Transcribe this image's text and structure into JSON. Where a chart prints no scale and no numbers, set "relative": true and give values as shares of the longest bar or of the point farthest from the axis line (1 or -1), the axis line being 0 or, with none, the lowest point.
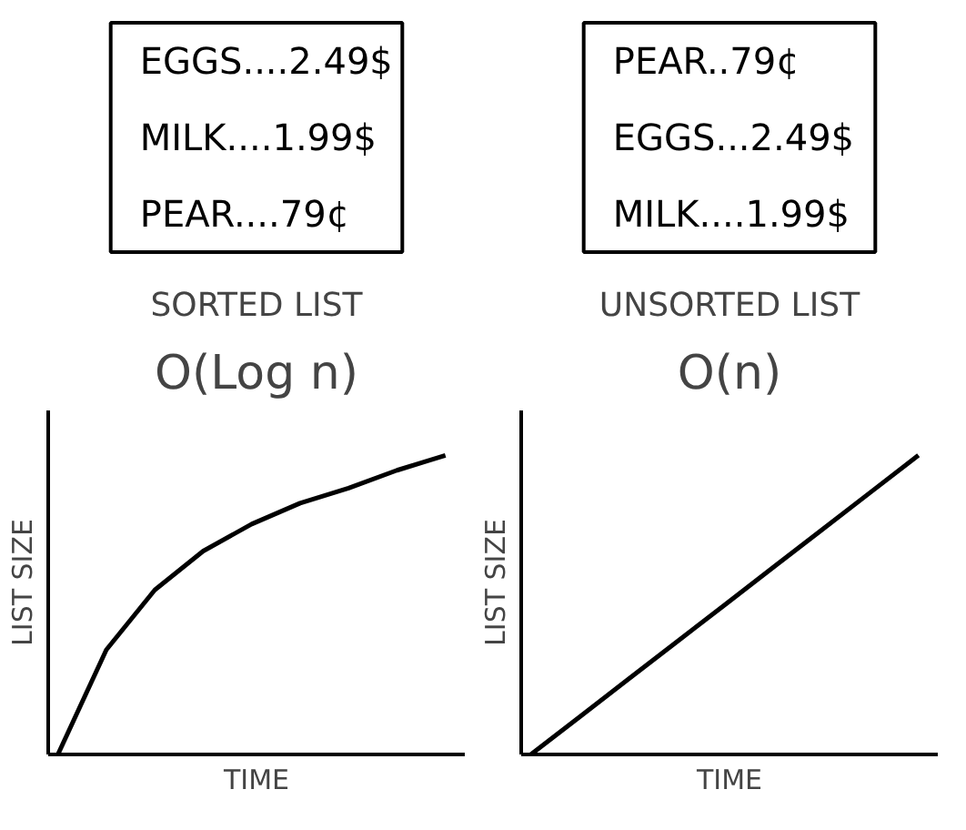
{
  "chart_data": [
    {
      "type": "other",
      "annotations": [
        "EGGS....2.49$",
        "MILK....1.99$",
        "PEAR....79¢"
      ]
    },
    {
      "type": "other",
      "annotations": [
        "PEAR..79¢",
        "EGGS...2.49$",
        "MILK....1.99$"
      ]
    },
    {
      "type": "line",
      "title": "SORTED LIST",
      "subtitle": "O(Log n)",
      "xlabel": "TIME",
      "ylabel": "LIST SIZE",
      "relative": true,
      "categories": [
        null,
        null,
        null,
        null,
        null,
        null,
        null,
        null,
        null
      ],
      "series": [
        {
          "color": "#000000",
          "values": [
            0,
            0.35,
            0.55,
            0.68,
            0.77,
            0.84,
            0.89,
            0.95,
            1
          ]
        }
      ]
    },
    {
      "type": "line",
      "title": "UNSORTED LIST",
      "subtitle": "O(n)",
      "xlabel": "TIME",
      "ylabel": "LIST SIZE",
      "relative": true,
      "categories": [
        null,
        null,
        null,
        null,
        null,
        null,
        null,
        null,
        null
      ],
      "series": [
        {
          "color": "#000000",
          "values": [
            0,
            0.125,
            0.25,
            0.375,
            0.5,
            0.625,
            0.75,
            0.875,
            1
          ]
        }
      ]
    }
  ]
}
